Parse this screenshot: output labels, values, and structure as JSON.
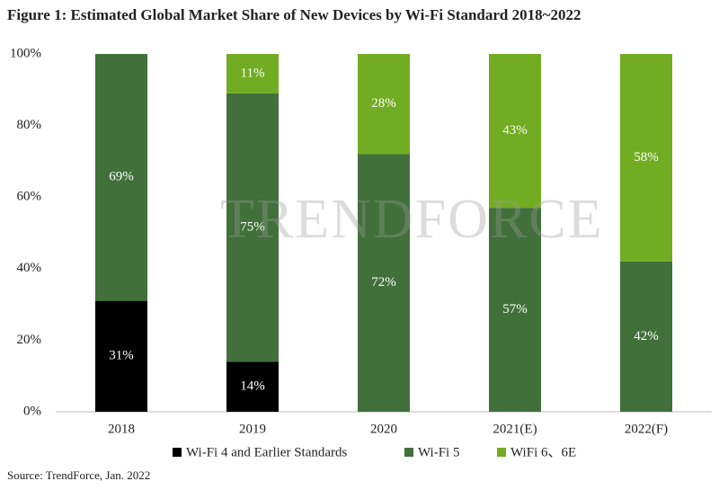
{
  "chart_data": {
    "type": "stacked_bar",
    "title": "Figure 1: Estimated Global Market Share of New Devices by Wi-Fi Standard 2018~2022",
    "categories": [
      "2018",
      "2019",
      "2020",
      "2021(E)",
      "2022(F)"
    ],
    "series": [
      {
        "name": "Wi-Fi 4 and Earlier Standards",
        "color": "#000000",
        "values": [
          31,
          14,
          null,
          null,
          null
        ],
        "value_labels": [
          "31%",
          "14%",
          null,
          null,
          null
        ]
      },
      {
        "name": "Wi-Fi 5",
        "color": "#41703a",
        "values": [
          69,
          75,
          72,
          57,
          42
        ],
        "value_labels": [
          "69%",
          "75%",
          "72%",
          "57%",
          "42%"
        ]
      },
      {
        "name": "WiFi 6、6E",
        "color": "#72ac22",
        "values": [
          null,
          11,
          28,
          43,
          58
        ],
        "value_labels": [
          null,
          "11%",
          "28%",
          "43%",
          "58%"
        ]
      }
    ],
    "ylim": [
      0,
      100
    ],
    "yticks": [
      {
        "value": 0,
        "label": "0%"
      },
      {
        "value": 20,
        "label": "20%"
      },
      {
        "value": 40,
        "label": "40%"
      },
      {
        "value": 60,
        "label": "60%"
      },
      {
        "value": 80,
        "label": "80%"
      },
      {
        "value": 100,
        "label": "100%"
      }
    ],
    "grid": false,
    "legend": "bottom",
    "watermark": "TRENDFORCE",
    "source": "Source: TrendForce, Jan. 2022"
  }
}
